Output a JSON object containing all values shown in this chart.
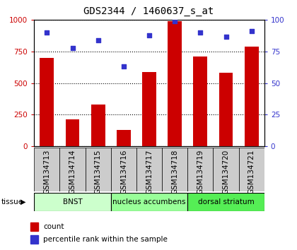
{
  "title": "GDS2344 / 1460637_s_at",
  "samples": [
    "GSM134713",
    "GSM134714",
    "GSM134715",
    "GSM134716",
    "GSM134717",
    "GSM134718",
    "GSM134719",
    "GSM134720",
    "GSM134721"
  ],
  "counts": [
    700,
    215,
    330,
    130,
    590,
    990,
    710,
    580,
    790
  ],
  "percentiles": [
    90,
    78,
    84,
    63,
    88,
    99,
    90,
    87,
    91
  ],
  "ylim_left": [
    0,
    1000
  ],
  "ylim_right": [
    0,
    100
  ],
  "yticks_left": [
    0,
    250,
    500,
    750,
    1000
  ],
  "yticks_right": [
    0,
    25,
    50,
    75,
    100
  ],
  "bar_color": "#cc0000",
  "dot_color": "#3333cc",
  "bar_width": 0.55,
  "groups": [
    {
      "label": "BNST",
      "start": 0,
      "end": 3,
      "color": "#ccffcc"
    },
    {
      "label": "nucleus accumbens",
      "start": 3,
      "end": 6,
      "color": "#99ff99"
    },
    {
      "label": "dorsal striatum",
      "start": 6,
      "end": 9,
      "color": "#55ee55"
    }
  ],
  "tissue_label": "tissue",
  "legend_count_label": "count",
  "legend_pct_label": "percentile rank within the sample",
  "tick_bg_color": "#cccccc",
  "title_fontsize": 10,
  "axis_fontsize": 7.5,
  "legend_fontsize": 7.5
}
